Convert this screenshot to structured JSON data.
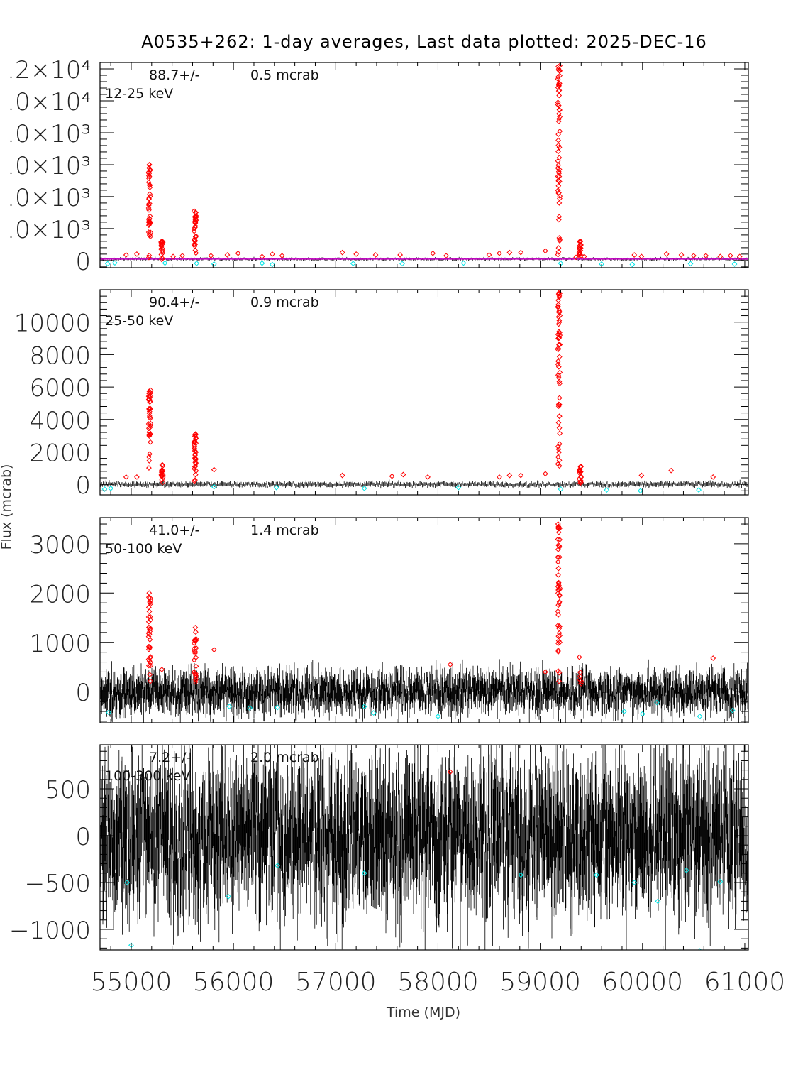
{
  "chart_data": {
    "type": "scatter",
    "title": "A0535+262:  1-day averages,  Last data plotted: 2025-DEC-16",
    "xlabel": "Time (MJD)",
    "ylabel": "Flux (mcrab)",
    "xlim": [
      54695,
      61035
    ],
    "x_ticks": [
      55000,
      56000,
      57000,
      58000,
      59000,
      60000,
      61000
    ],
    "x_tick_labels": [
      "55000",
      "56000",
      "57000",
      "58000",
      "59000",
      "60000",
      "61000"
    ],
    "colors": {
      "data": "#000000",
      "detections": "#ff0000",
      "negative": "#00e5e5",
      "mean_line": "#cc00cc"
    },
    "panels": [
      {
        "band": "12-25 keV",
        "mean_label": "88.7+/-",
        "err_label": "0.5 mcrab",
        "ylim": [
          -450,
          12400
        ],
        "y_ticks": [
          0,
          2000,
          4000,
          6000,
          8000,
          10000,
          12000
        ],
        "y_tick_labels": [
          "0",
          ".0×10³",
          ".0×10³",
          ".0×10³",
          ".0×10³",
          ".0×10⁴",
          ".2×10⁴"
        ],
        "noise_rms": 60,
        "outbursts": [
          {
            "mjd": 55180,
            "peak": 6000,
            "n": 40
          },
          {
            "mjd": 55300,
            "peak": 1200,
            "n": 18
          },
          {
            "mjd": 55625,
            "peak": 3100,
            "n": 35
          },
          {
            "mjd": 59182,
            "peak": 12200,
            "n": 60
          },
          {
            "mjd": 59390,
            "peak": 1200,
            "n": 18
          }
        ],
        "minor_detections": [
          [
            54950,
            350
          ],
          [
            55055,
            400
          ],
          [
            55410,
            250
          ],
          [
            55500,
            300
          ],
          [
            55780,
            300
          ],
          [
            55940,
            350
          ],
          [
            56045,
            450
          ],
          [
            56280,
            250
          ],
          [
            56380,
            400
          ],
          [
            56475,
            300
          ],
          [
            57065,
            500
          ],
          [
            57200,
            400
          ],
          [
            57390,
            350
          ],
          [
            57630,
            350
          ],
          [
            57950,
            450
          ],
          [
            58080,
            300
          ],
          [
            58500,
            350
          ],
          [
            58600,
            450
          ],
          [
            58700,
            500
          ],
          [
            58810,
            500
          ],
          [
            59050,
            600
          ],
          [
            59350,
            200
          ],
          [
            59430,
            250
          ],
          [
            59920,
            350
          ],
          [
            59990,
            250
          ],
          [
            60235,
            400
          ],
          [
            60380,
            350
          ],
          [
            60500,
            300
          ],
          [
            60620,
            300
          ],
          [
            60760,
            250
          ],
          [
            60860,
            300
          ],
          [
            60950,
            250
          ]
        ],
        "negatives": [
          [
            54770,
            -200
          ],
          [
            54840,
            -150
          ],
          [
            55330,
            -160
          ],
          [
            55640,
            -180
          ],
          [
            55810,
            -220
          ],
          [
            56280,
            -170
          ],
          [
            56380,
            -250
          ],
          [
            57170,
            -190
          ],
          [
            57650,
            -200
          ],
          [
            58250,
            -160
          ],
          [
            59200,
            -180
          ],
          [
            59600,
            -220
          ],
          [
            59900,
            -250
          ],
          [
            60470,
            -200
          ],
          [
            60900,
            -230
          ]
        ]
      },
      {
        "band": "25-50 keV",
        "mean_label": "90.4+/-",
        "err_label": "0.9 mcrab",
        "ylim": [
          -650,
          12000
        ],
        "y_ticks": [
          0,
          2000,
          4000,
          6000,
          8000,
          10000
        ],
        "y_tick_labels": [
          "0",
          "2000",
          "4000",
          "6000",
          "8000",
          "10000"
        ],
        "noise_rms": 110,
        "outbursts": [
          {
            "mjd": 55180,
            "peak": 5800,
            "n": 40
          },
          {
            "mjd": 55300,
            "peak": 1200,
            "n": 18
          },
          {
            "mjd": 55625,
            "peak": 3100,
            "n": 35
          },
          {
            "mjd": 59182,
            "peak": 11800,
            "n": 60
          },
          {
            "mjd": 59390,
            "peak": 1100,
            "n": 18
          }
        ],
        "minor_detections": [
          [
            54950,
            450
          ],
          [
            55055,
            450
          ],
          [
            55810,
            900
          ],
          [
            57065,
            550
          ],
          [
            57550,
            500
          ],
          [
            57660,
            600
          ],
          [
            57900,
            450
          ],
          [
            58600,
            450
          ],
          [
            58700,
            550
          ],
          [
            58810,
            550
          ],
          [
            59050,
            650
          ],
          [
            59990,
            550
          ],
          [
            60280,
            850
          ],
          [
            60690,
            450
          ]
        ],
        "negatives": [
          [
            54740,
            -300
          ],
          [
            54800,
            -250
          ],
          [
            55810,
            -150
          ],
          [
            56420,
            -200
          ],
          [
            57280,
            -250
          ],
          [
            58200,
            -200
          ],
          [
            59200,
            -300
          ],
          [
            59650,
            -350
          ],
          [
            59980,
            -400
          ],
          [
            60550,
            -350
          ]
        ]
      },
      {
        "band": "50-100 keV",
        "mean_label": "41.0+/-",
        "err_label": "1.4 mcrab",
        "ylim": [
          -630,
          3530
        ],
        "y_ticks": [
          0,
          1000,
          2000,
          3000
        ],
        "y_tick_labels": [
          "0",
          "1000",
          "2000",
          "3000"
        ],
        "noise_rms": 160,
        "outbursts": [
          {
            "mjd": 55180,
            "peak": 2000,
            "n": 35
          },
          {
            "mjd": 55625,
            "peak": 1300,
            "n": 25
          },
          {
            "mjd": 59182,
            "peak": 3400,
            "n": 50
          },
          {
            "mjd": 59390,
            "peak": 700,
            "n": 6
          }
        ],
        "minor_detections": [
          [
            55300,
            450
          ],
          [
            55810,
            850
          ],
          [
            58120,
            550
          ],
          [
            59050,
            400
          ],
          [
            60690,
            680
          ]
        ],
        "negatives": [
          [
            54780,
            -420
          ],
          [
            55960,
            -300
          ],
          [
            56160,
            -330
          ],
          [
            56430,
            -320
          ],
          [
            57280,
            -300
          ],
          [
            57370,
            -430
          ],
          [
            58000,
            -500
          ],
          [
            59820,
            -400
          ],
          [
            60000,
            -450
          ],
          [
            60140,
            -220
          ],
          [
            60560,
            -500
          ],
          [
            60880,
            -380
          ]
        ]
      },
      {
        "band": "100-300 keV",
        "mean_label": "7.2+/-",
        "err_label": "2.0 mcrab",
        "ylim": [
          -1220,
          970
        ],
        "y_ticks": [
          -1000,
          -500,
          0,
          500
        ],
        "y_tick_labels": [
          "−1000",
          "−500",
          "0",
          "500"
        ],
        "noise_rms": 300,
        "outbursts": [],
        "minor_detections": [
          [
            58120,
            680
          ]
        ],
        "negatives": [
          [
            54960,
            -500
          ],
          [
            55000,
            -1170
          ],
          [
            55950,
            -650
          ],
          [
            56430,
            -320
          ],
          [
            57280,
            -400
          ],
          [
            58810,
            -420
          ],
          [
            59550,
            -420
          ],
          [
            59920,
            -500
          ],
          [
            60150,
            -700
          ],
          [
            60430,
            -370
          ],
          [
            60560,
            -1230
          ],
          [
            60760,
            -490
          ]
        ]
      }
    ]
  }
}
